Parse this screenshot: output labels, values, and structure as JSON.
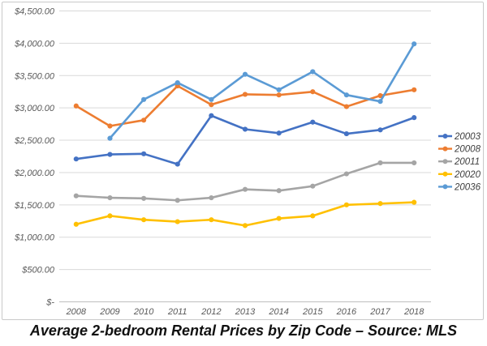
{
  "figure": {
    "caption": "Average 2-bedroom Rental Prices by Zip Code – Source: MLS"
  },
  "chart_data": {
    "type": "line",
    "title": "",
    "x": [
      "2008",
      "2009",
      "2010",
      "2011",
      "2012",
      "2013",
      "2014",
      "2015",
      "2016",
      "2017",
      "2018"
    ],
    "xlabel": "",
    "ylabel": "",
    "ylim": [
      0,
      4500
    ],
    "y_tick_interval": 500,
    "y_tick_labels": [
      "$-",
      "$500.00",
      "$1,000.00",
      "$1,500.00",
      "$2,000.00",
      "$2,500.00",
      "$3,000.00",
      "$3,500.00",
      "$4,000.00",
      "$4,500.00"
    ],
    "grid": true,
    "legend_position": "right",
    "series": [
      {
        "name": "20003",
        "color": "#4472C4",
        "values": [
          2210,
          2280,
          2290,
          2130,
          2880,
          2670,
          2610,
          2780,
          2600,
          2660,
          2850
        ]
      },
      {
        "name": "20008",
        "color": "#ED7D31",
        "values": [
          3030,
          2720,
          2810,
          3340,
          3050,
          3210,
          3200,
          3250,
          3020,
          3190,
          3280
        ]
      },
      {
        "name": "20011",
        "color": "#A5A5A5",
        "values": [
          1640,
          1610,
          1600,
          1570,
          1610,
          1740,
          1720,
          1790,
          1980,
          2150,
          2150
        ]
      },
      {
        "name": "20020",
        "color": "#FFC000",
        "values": [
          1200,
          1330,
          1270,
          1240,
          1270,
          1180,
          1290,
          1330,
          1500,
          1520,
          1540
        ]
      },
      {
        "name": "20036",
        "color": "#5B9BD5",
        "values": [
          null,
          2530,
          3130,
          3390,
          3130,
          3520,
          3280,
          3560,
          3200,
          3100,
          3990
        ]
      }
    ],
    "style": {
      "grid_color": "#d9d9d9",
      "axis_color": "#bfbfbf",
      "tick_text_color": "#595959"
    }
  }
}
